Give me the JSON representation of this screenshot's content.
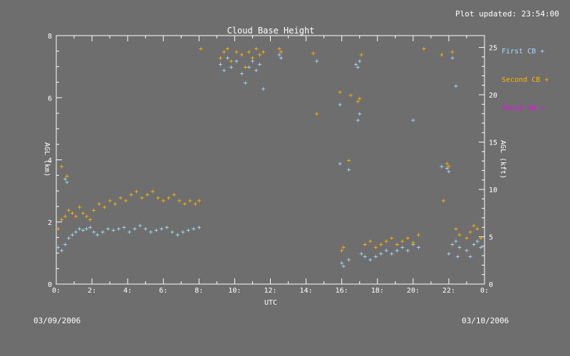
{
  "header": {
    "updated": "Plot updated: 23:54:00"
  },
  "footer": {
    "start_date": "03/09/2006",
    "end_date": "03/10/2006"
  },
  "chart_data": {
    "type": "scatter",
    "title": "Cloud Base Height",
    "xlabel": "UTC",
    "ylabel": "AGL (km)",
    "ylabel_right": "AGL (kft)",
    "xlim": [
      0,
      24
    ],
    "ylim": [
      0,
      8
    ],
    "ylim_right": [
      0,
      26.25
    ],
    "xticks": [
      0,
      2,
      4,
      6,
      8,
      10,
      12,
      14,
      16,
      18,
      20,
      22,
      24
    ],
    "xtick_labels": [
      "0:",
      "2:",
      "4:",
      "6:",
      "8:",
      "10:",
      "12:",
      "14:",
      "16:",
      "18:",
      "20:",
      "22:",
      "0:"
    ],
    "yticks": [
      0,
      2,
      4,
      6,
      8
    ],
    "ytick_labels": [
      "0",
      "2",
      "4",
      "6",
      "8"
    ],
    "yticks_right": [
      0,
      5,
      10,
      15,
      20,
      25
    ],
    "ytick_labels_right": [
      "0",
      "5",
      "10",
      "15",
      "20",
      "25"
    ],
    "marker": "+",
    "grid": false,
    "legend": "right",
    "series": [
      {
        "name": "First CB",
        "color": "#a3dcf5",
        "x": [
          0.1,
          0.3,
          0.5,
          0.7,
          0.9,
          1.1,
          1.3,
          1.5,
          1.7,
          1.9,
          2.1,
          2.3,
          2.6,
          2.9,
          3.2,
          3.5,
          3.8,
          4.1,
          4.4,
          4.7,
          5.0,
          5.3,
          5.6,
          5.9,
          6.2,
          6.5,
          6.8,
          7.1,
          7.4,
          7.7,
          8.0,
          0.5,
          0.6,
          9.2,
          9.4,
          9.6,
          9.8,
          10.1,
          10.4,
          10.6,
          10.8,
          11.0,
          11.2,
          11.4,
          11.6,
          12.5,
          12.6,
          14.6,
          15.9,
          16.0,
          16.1,
          16.4,
          16.9,
          17.0,
          17.1,
          17.3,
          17.6,
          17.9,
          18.2,
          18.5,
          18.8,
          19.1,
          19.4,
          19.7,
          20.0,
          20.3,
          22.0,
          22.2,
          22.4,
          22.5,
          22.6,
          23.0,
          23.2,
          23.4,
          23.6,
          23.8,
          15.9,
          16.4,
          16.8,
          16.9,
          17.0,
          21.6,
          21.9,
          22.0,
          20.0,
          22.2,
          22.4
        ],
        "y": [
          1.2,
          1.1,
          1.3,
          1.5,
          1.6,
          1.7,
          1.8,
          1.75,
          1.8,
          1.85,
          1.7,
          1.6,
          1.7,
          1.8,
          1.75,
          1.8,
          1.85,
          1.7,
          1.8,
          1.9,
          1.8,
          1.7,
          1.75,
          1.8,
          1.85,
          1.7,
          1.6,
          1.7,
          1.75,
          1.8,
          1.85,
          3.4,
          3.3,
          7.1,
          6.9,
          7.3,
          7.0,
          7.2,
          6.8,
          6.5,
          7.0,
          7.2,
          6.9,
          7.1,
          6.3,
          7.4,
          7.3,
          7.2,
          5.8,
          0.7,
          0.6,
          0.8,
          5.3,
          5.5,
          1.0,
          0.9,
          0.8,
          0.9,
          1.0,
          1.1,
          1.0,
          1.1,
          1.2,
          1.1,
          1.3,
          1.2,
          1.0,
          1.3,
          1.4,
          0.9,
          1.2,
          1.1,
          0.9,
          1.3,
          1.4,
          1.2,
          3.9,
          3.7,
          7.1,
          7.0,
          7.2,
          3.8,
          3.75,
          3.65,
          5.3,
          7.3,
          6.4
        ]
      },
      {
        "name": "Second CB",
        "color": "#ffb300",
        "x": [
          0.1,
          0.3,
          0.5,
          0.7,
          0.9,
          1.1,
          1.3,
          1.5,
          1.7,
          1.9,
          2.1,
          2.4,
          2.7,
          3.0,
          3.3,
          3.6,
          3.9,
          4.2,
          4.5,
          4.8,
          5.1,
          5.4,
          5.7,
          6.0,
          6.3,
          6.6,
          6.9,
          7.2,
          7.5,
          7.8,
          8.0,
          0.3,
          0.6,
          8.1,
          9.2,
          9.4,
          9.6,
          9.8,
          10.1,
          10.4,
          10.6,
          10.8,
          11.0,
          11.2,
          11.4,
          11.6,
          12.5,
          12.6,
          14.4,
          14.6,
          15.9,
          16.0,
          16.1,
          16.4,
          16.5,
          16.9,
          17.0,
          17.1,
          17.3,
          17.6,
          17.9,
          18.2,
          18.5,
          18.8,
          19.1,
          19.4,
          19.7,
          20.0,
          20.3,
          20.6,
          21.6,
          21.7,
          21.9,
          22.0,
          22.2,
          22.4,
          22.6,
          23.0,
          23.2,
          23.4,
          23.6,
          23.8
        ],
        "y": [
          1.8,
          2.1,
          2.2,
          2.4,
          2.3,
          2.2,
          2.5,
          2.3,
          2.2,
          2.1,
          2.4,
          2.6,
          2.5,
          2.7,
          2.6,
          2.8,
          2.7,
          2.9,
          3.0,
          2.8,
          2.9,
          3.0,
          2.8,
          2.7,
          2.8,
          2.9,
          2.7,
          2.6,
          2.7,
          2.6,
          2.7,
          3.8,
          3.5,
          7.6,
          7.3,
          7.5,
          7.6,
          7.2,
          7.5,
          7.4,
          7.0,
          7.5,
          7.3,
          7.6,
          7.4,
          7.5,
          7.6,
          7.5,
          7.45,
          5.5,
          6.2,
          1.1,
          1.2,
          4.0,
          6.1,
          5.9,
          6.0,
          7.4,
          1.3,
          1.4,
          1.2,
          1.3,
          1.4,
          1.5,
          1.3,
          1.4,
          1.5,
          1.35,
          1.6,
          7.6,
          7.4,
          2.7,
          3.9,
          3.8,
          7.5,
          1.8,
          1.6,
          1.5,
          1.7,
          1.9,
          1.8,
          1.5
        ]
      },
      {
        "name": "Third CB",
        "color": "#ff00ff",
        "x": [],
        "y": []
      }
    ]
  }
}
